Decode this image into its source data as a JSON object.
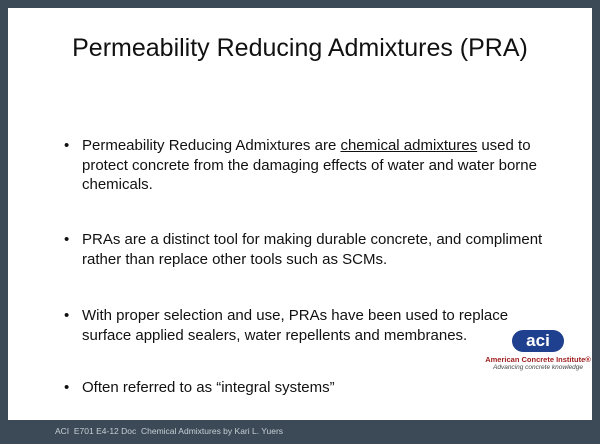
{
  "slide": {
    "title": "Permeability Reducing Admixtures (PRA)",
    "bullets": [
      {
        "parts": [
          "Permeability Reducing Admixtures are ",
          "chemical admixtures",
          " used to protect concrete from the damaging effects of water and water borne chemicals."
        ]
      },
      {
        "parts": [
          "PRAs are a distinct tool for making durable concrete, and compliment rather than replace other tools such as SCMs."
        ]
      },
      {
        "parts": [
          "With proper selection and use, PRAs have been used to replace surface applied sealers, water repellents and membranes."
        ]
      },
      {
        "parts": [
          "Often referred to as “integral systems”"
        ]
      }
    ],
    "logo": {
      "mark": "aci",
      "name": "American Concrete Institute®",
      "tagline": "Advancing concrete knowledge"
    },
    "footer": "ACI  E701 E4-12 Doc  Chemical Admixtures by Kari L. Yuers"
  }
}
